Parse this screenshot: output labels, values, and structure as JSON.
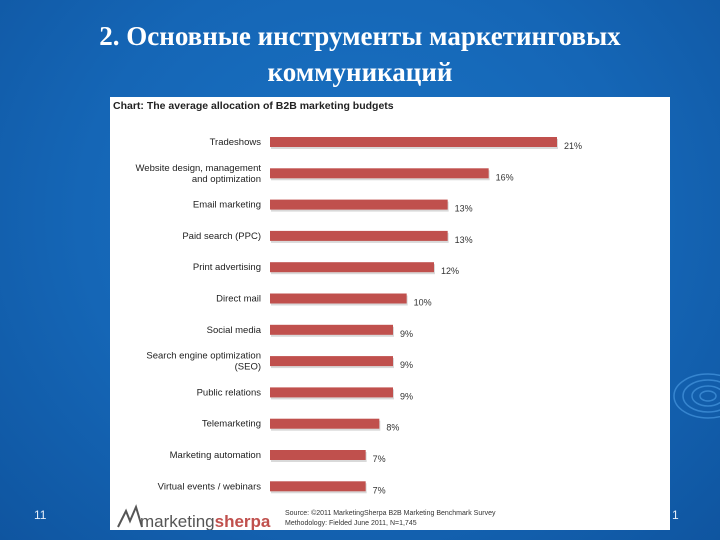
{
  "slide": {
    "title_line1": "2. Основные инструменты маркетинговых",
    "title_line2": "коммуникаций",
    "footer_left": "11",
    "footer_right": "1"
  },
  "colors": {
    "background": "#1566b6",
    "bar": "#c0504d",
    "panel": "#ffffff"
  },
  "chart_data": {
    "type": "bar",
    "orientation": "horizontal",
    "title": "Chart: The average allocation of B2B marketing budgets",
    "categories": [
      "Tradeshows",
      "Website design, management\nand optimization",
      "Email marketing",
      "Paid search (PPC)",
      "Print advertising",
      "Direct mail",
      "Social media",
      "Search engine optimization\n(SEO)",
      "Public relations",
      "Telemarketing",
      "Marketing automation",
      "Virtual events / webinars"
    ],
    "values": [
      21,
      16,
      13,
      13,
      12,
      10,
      9,
      9,
      9,
      8,
      7,
      7
    ],
    "value_labels": [
      "21%",
      "16%",
      "13%",
      "13%",
      "12%",
      "10%",
      "9%",
      "9%",
      "9%",
      "8%",
      "7%",
      "7%"
    ],
    "xlim": [
      0,
      21
    ],
    "grid": false,
    "logo_text": "marketingsherpa",
    "source_line1": "Source: ©2011 MarketingSherpa B2B Marketing Benchmark Survey",
    "source_line2": "Methodology: Fielded June 2011, N=1,745"
  }
}
